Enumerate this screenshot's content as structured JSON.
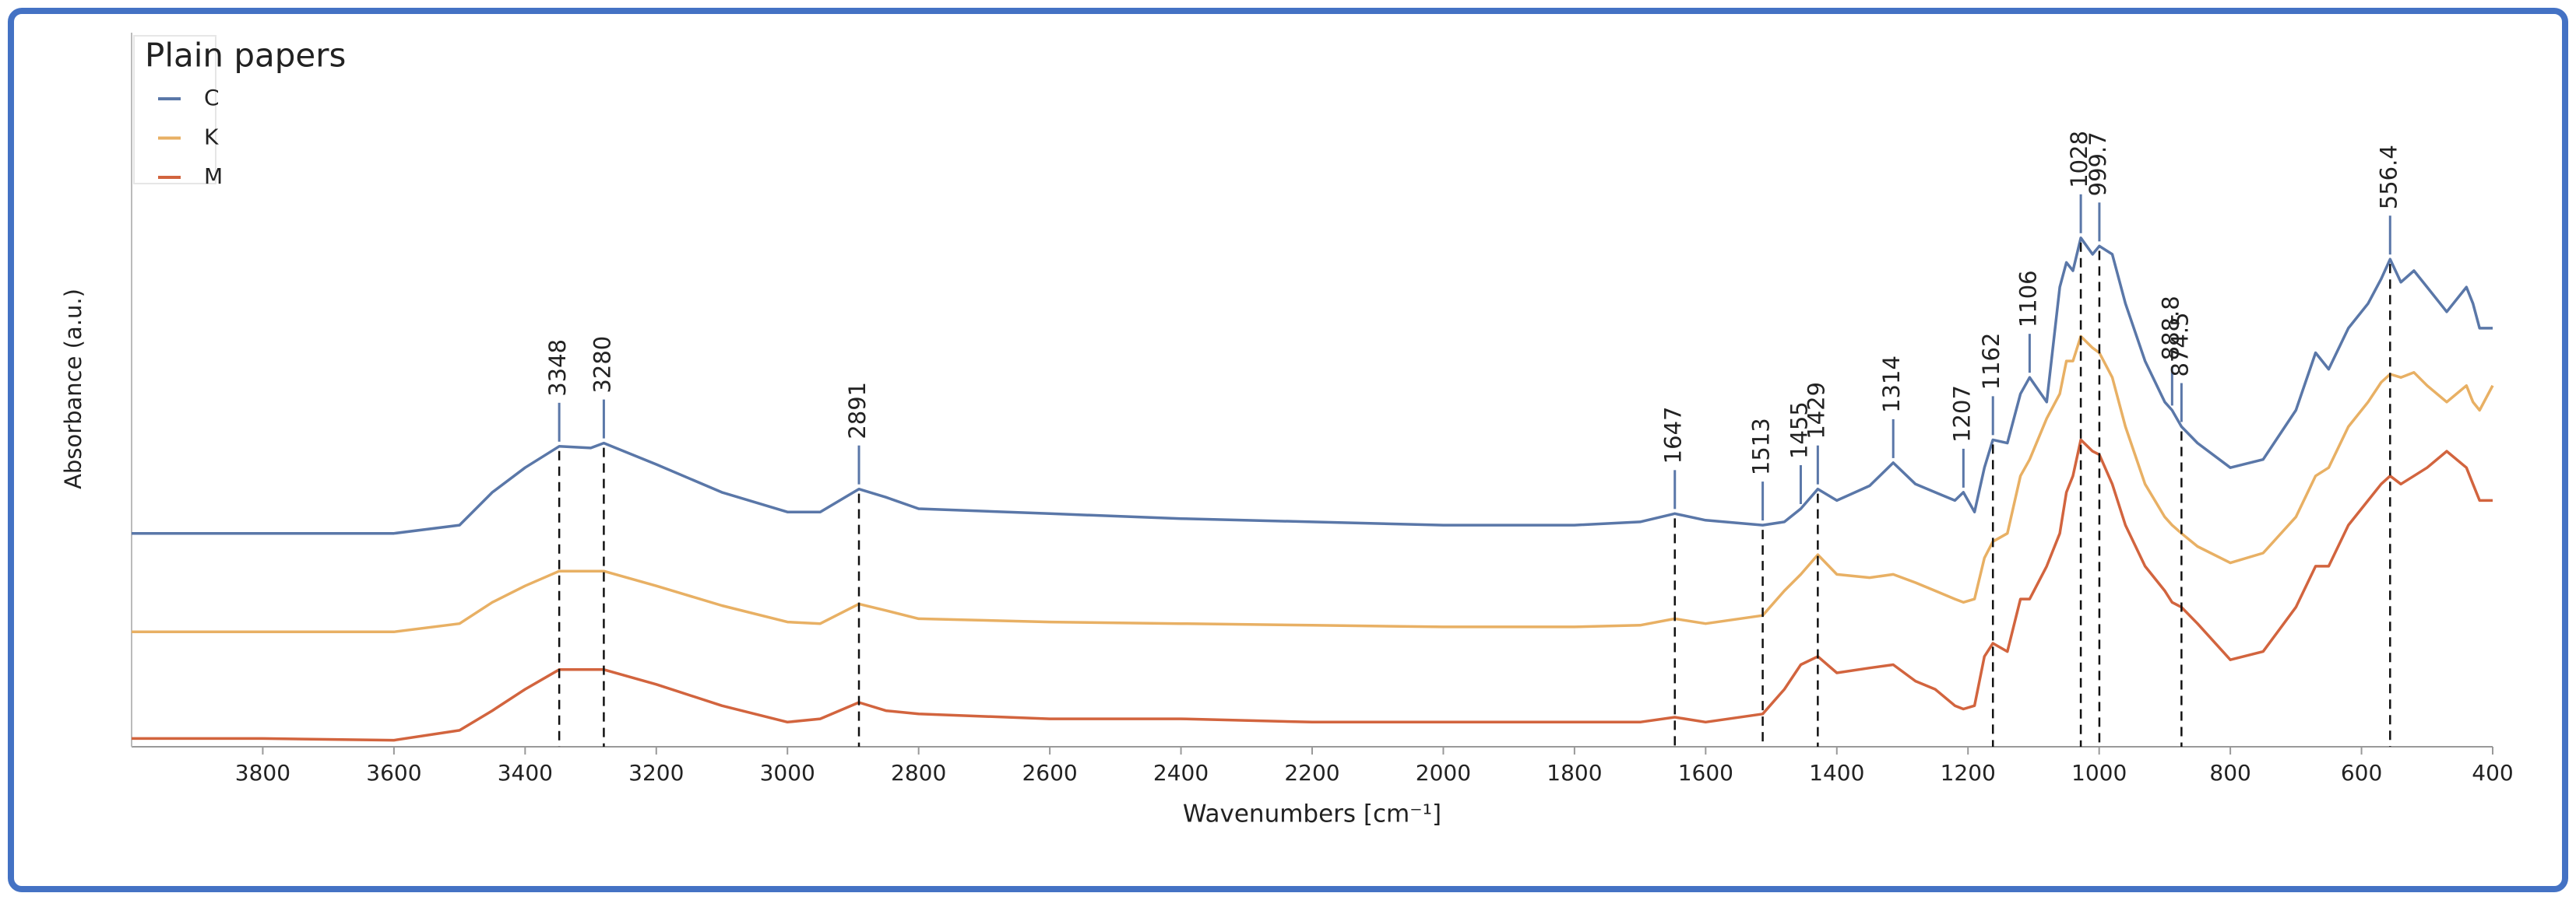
{
  "chart_data": {
    "type": "line",
    "legend_title": "Plain papers",
    "x_label": "Wavenumbers [cm⁻¹]",
    "y_label": "Absorbance  (a.u.)",
    "legend": "top-left",
    "x": [
      4000,
      3800,
      3600,
      3500,
      3450,
      3400,
      3348,
      3300,
      3280,
      3200,
      3100,
      3000,
      2950,
      2891,
      2850,
      2800,
      2600,
      2400,
      2200,
      2000,
      1800,
      1700,
      1647,
      1600,
      1513,
      1480,
      1455,
      1429,
      1400,
      1350,
      1314,
      1280,
      1250,
      1220,
      1207,
      1190,
      1175,
      1162,
      1140,
      1120,
      1106,
      1080,
      1060,
      1050,
      1040,
      1028,
      1010,
      999.7,
      980,
      960,
      930,
      900,
      888.8,
      874.5,
      850,
      800,
      750,
      700,
      670,
      650,
      620,
      590,
      570,
      556.4,
      540,
      520,
      500,
      470,
      440,
      430,
      420,
      400
    ],
    "series": [
      {
        "name": "C",
        "color": "#5a77a8",
        "values": [
          130,
          130,
          130,
          135,
          155,
          170,
          183,
          182,
          185,
          172,
          155,
          143,
          143,
          157,
          152,
          145,
          142,
          139,
          137,
          135,
          135,
          137,
          142,
          138,
          135,
          137,
          145,
          157,
          150,
          159,
          173,
          160,
          155,
          150,
          155,
          143,
          170,
          187,
          185,
          215,
          225,
          210,
          280,
          295,
          290,
          310,
          300,
          305,
          300,
          270,
          235,
          210,
          205,
          195,
          185,
          170,
          175,
          205,
          240,
          230,
          255,
          270,
          285,
          297,
          283,
          290,
          280,
          265,
          280,
          270,
          255,
          255
        ]
      },
      {
        "name": "K",
        "color": "#e8b064",
        "values": [
          70,
          70,
          70,
          75,
          88,
          98,
          107,
          107,
          107,
          98,
          86,
          76,
          75,
          87,
          83,
          78,
          76,
          75,
          74,
          73,
          73,
          74,
          78,
          75,
          80,
          95,
          105,
          117,
          105,
          103,
          105,
          100,
          95,
          90,
          88,
          90,
          115,
          125,
          130,
          165,
          175,
          200,
          215,
          235,
          235,
          250,
          243,
          240,
          225,
          195,
          160,
          140,
          135,
          130,
          122,
          112,
          118,
          140,
          165,
          170,
          195,
          210,
          222,
          227,
          225,
          228,
          220,
          210,
          220,
          210,
          205,
          220
        ]
      },
      {
        "name": "M",
        "color": "#d2643e",
        "values": [
          5,
          5,
          4,
          10,
          22,
          35,
          47,
          47,
          47,
          38,
          25,
          15,
          17,
          27,
          22,
          20,
          17,
          17,
          15,
          15,
          15,
          15,
          18,
          15,
          20,
          35,
          50,
          55,
          45,
          48,
          50,
          40,
          35,
          25,
          23,
          25,
          55,
          63,
          58,
          90,
          90,
          110,
          130,
          155,
          165,
          187,
          180,
          178,
          160,
          135,
          110,
          95,
          88,
          85,
          75,
          53,
          58,
          85,
          110,
          110,
          135,
          150,
          160,
          165,
          160,
          165,
          170,
          180,
          170,
          160,
          150,
          150
        ]
      }
    ],
    "xlim": [
      4000,
      400
    ],
    "xticks": [
      3800,
      3600,
      3400,
      3200,
      3000,
      2800,
      2600,
      2400,
      2200,
      2000,
      1800,
      1600,
      1400,
      1200,
      1000,
      800,
      600,
      400
    ],
    "ylim": [
      0,
      435
    ],
    "peaks": [
      {
        "value": 3348,
        "dashed": true
      },
      {
        "value": 3280,
        "dashed": true
      },
      {
        "value": 2891,
        "dashed": true
      },
      {
        "value": 1647,
        "dashed": true
      },
      {
        "value": 1513,
        "dashed": true
      },
      {
        "value": 1455,
        "dashed": false
      },
      {
        "value": 1429,
        "dashed": true
      },
      {
        "value": 1314,
        "dashed": false
      },
      {
        "value": 1207,
        "dashed": false
      },
      {
        "value": 1162,
        "dashed": true
      },
      {
        "value": 1106,
        "dashed": false
      },
      {
        "value": 1028,
        "dashed": true
      },
      {
        "value": 999.7,
        "dashed": true
      },
      {
        "value": 888.8,
        "dashed": false
      },
      {
        "value": 874.5,
        "dashed": true
      },
      {
        "value": 556.4,
        "dashed": true
      }
    ]
  }
}
